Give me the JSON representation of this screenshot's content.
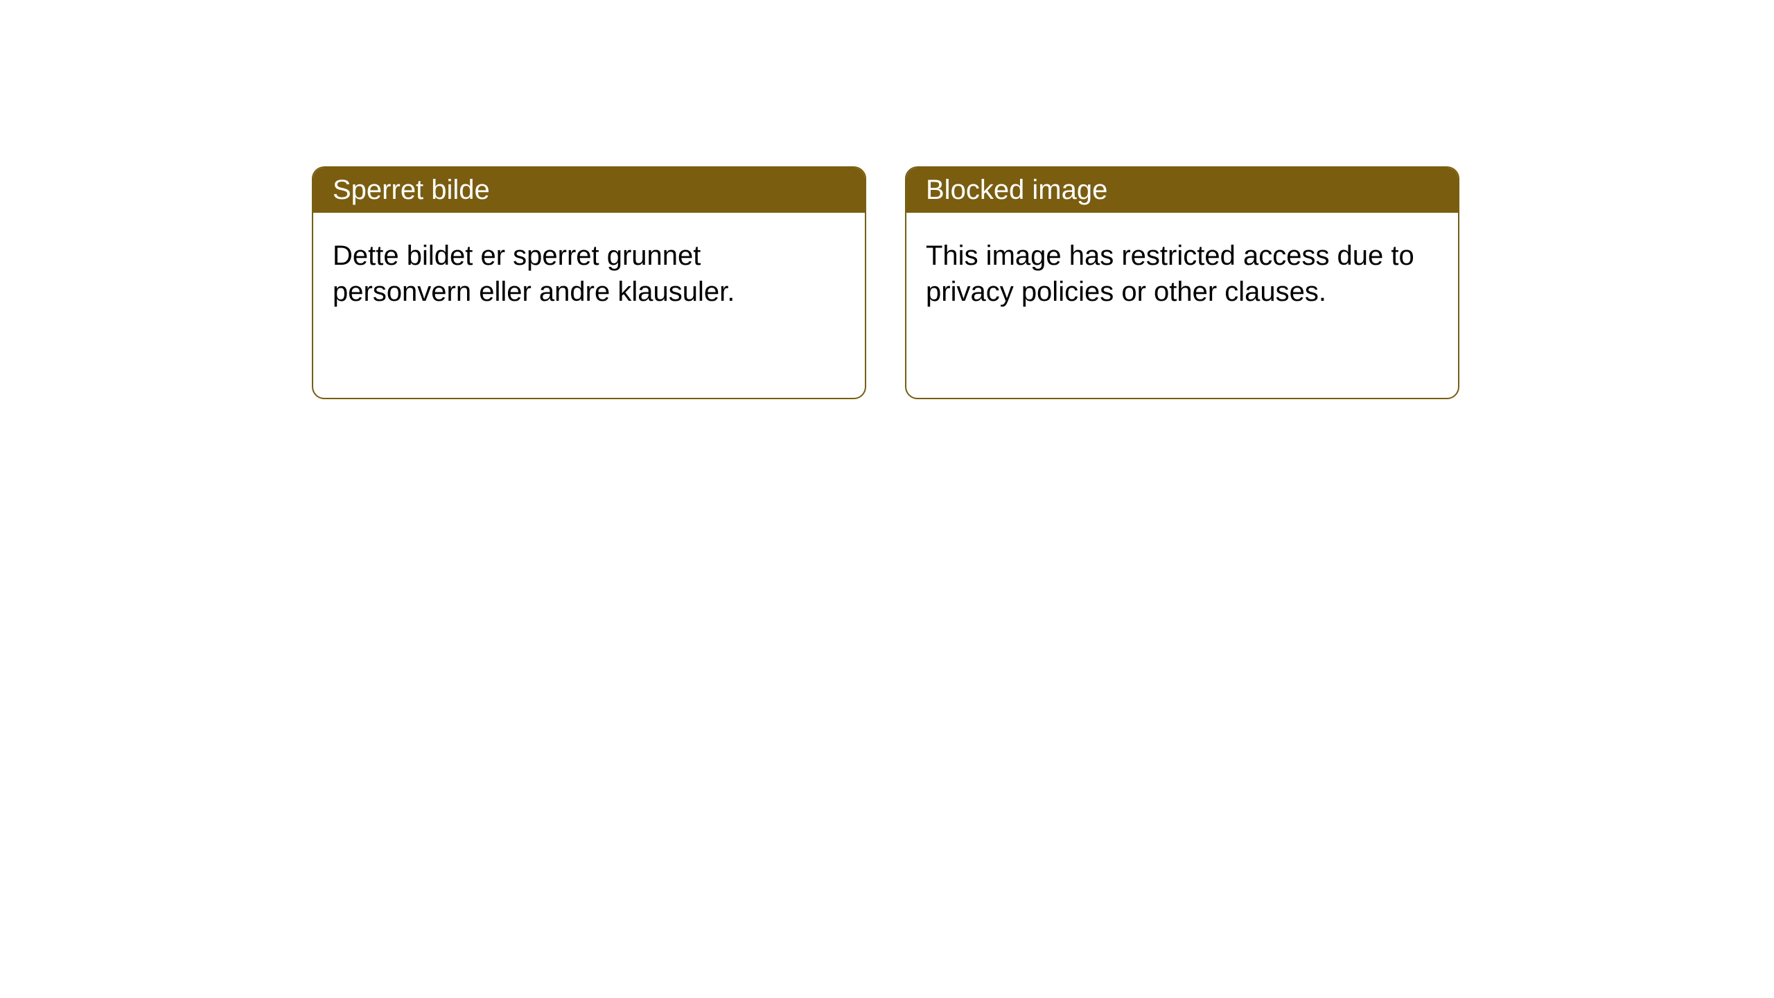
{
  "cards": [
    {
      "header": "Sperret bilde",
      "body": "Dette bildet er sperret grunnet personvern eller andre klausuler."
    },
    {
      "header": "Blocked image",
      "body": "This image has restricted access due to privacy policies or other clauses."
    }
  ],
  "style": {
    "header_bg_color": "#7a5d0f",
    "header_text_color": "#ffffff",
    "border_color": "#7a5d0f",
    "card_bg_color": "#ffffff",
    "body_text_color": "#000000",
    "border_radius": 18,
    "header_font_size": 40,
    "body_font_size": 40
  }
}
